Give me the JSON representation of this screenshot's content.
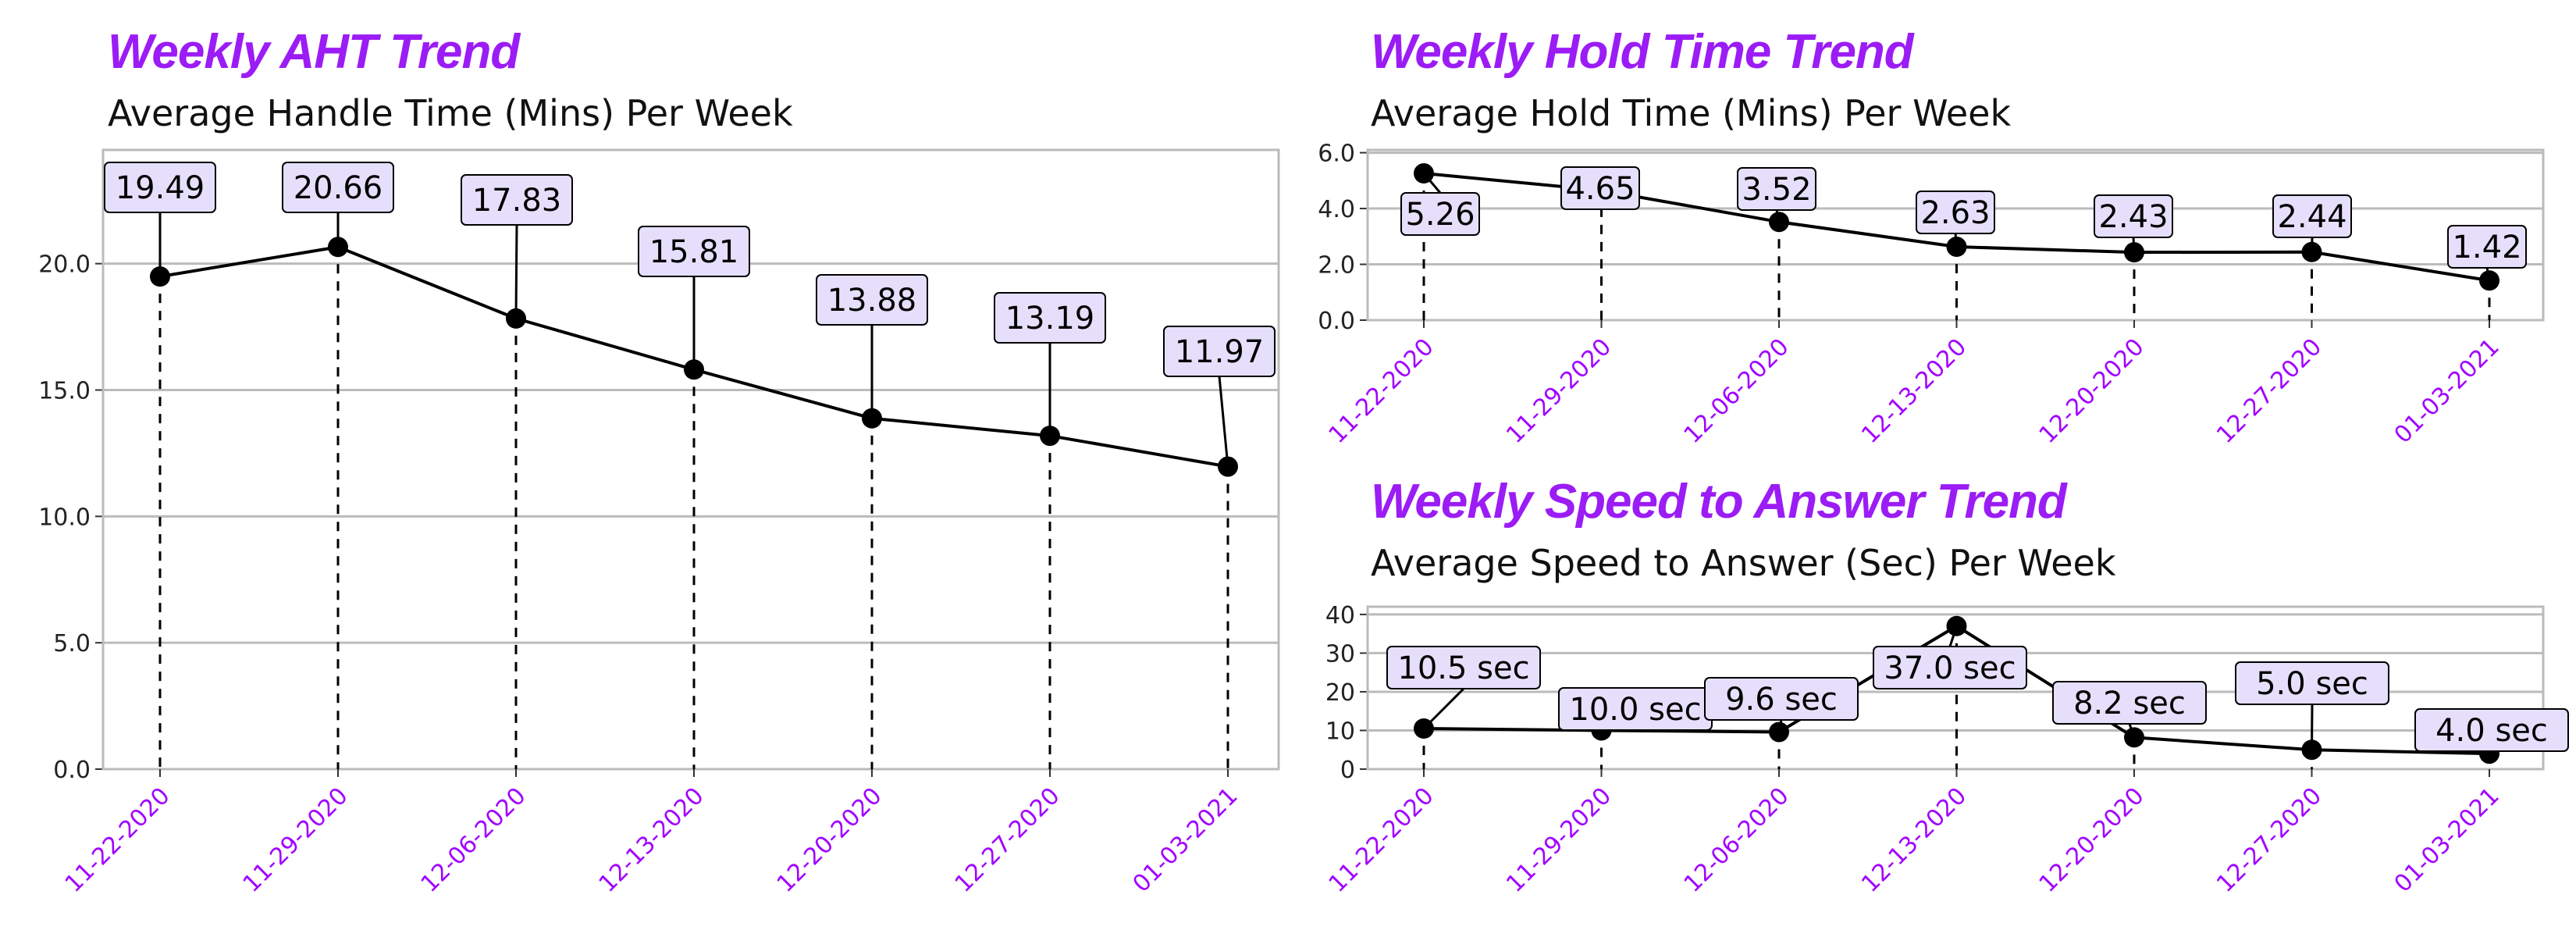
{
  "colors": {
    "title": "#9B1CF5",
    "tick_x": "#A100FF",
    "label_fill": "#E6DFFB",
    "grid": "#BBBBBB",
    "line": "#000000"
  },
  "chart_data": [
    {
      "type": "line",
      "title": "Weekly AHT Trend",
      "subtitle": "Average Handle Time (Mins) Per Week",
      "categories": [
        "11-22-2020",
        "11-29-2020",
        "12-06-2020",
        "12-13-2020",
        "12-20-2020",
        "12-27-2020",
        "01-03-2021"
      ],
      "values": [
        19.49,
        20.66,
        17.83,
        15.81,
        13.88,
        13.19,
        11.97
      ],
      "data_labels": [
        "19.49",
        "20.66",
        "17.83",
        "15.81",
        "13.88",
        "13.19",
        "11.97"
      ],
      "yticks": [
        "0.0",
        "5.0",
        "10.0",
        "15.0",
        "20.0"
      ],
      "ylim": [
        0,
        24.5
      ],
      "grid": true,
      "xlabel": "",
      "ylabel": ""
    },
    {
      "type": "line",
      "title": "Weekly Hold Time Trend",
      "subtitle": "Average Hold Time (Mins) Per Week",
      "categories": [
        "11-22-2020",
        "11-29-2020",
        "12-06-2020",
        "12-13-2020",
        "12-20-2020",
        "12-27-2020",
        "01-03-2021"
      ],
      "values": [
        5.26,
        4.65,
        3.52,
        2.63,
        2.43,
        2.44,
        1.42
      ],
      "data_labels": [
        "5.26",
        "4.65",
        "3.52",
        "2.63",
        "2.43",
        "2.44",
        "1.42"
      ],
      "yticks": [
        "0.0",
        "2.0",
        "4.0",
        "6.0"
      ],
      "ylim": [
        0,
        6.1
      ],
      "grid": true,
      "xlabel": "",
      "ylabel": ""
    },
    {
      "type": "line",
      "title": "Weekly Speed to Answer Trend",
      "subtitle": "Average Speed to Answer (Sec) Per Week",
      "categories": [
        "11-22-2020",
        "11-29-2020",
        "12-06-2020",
        "12-13-2020",
        "12-20-2020",
        "12-27-2020",
        "01-03-2021"
      ],
      "values": [
        10.5,
        10.0,
        9.6,
        37.0,
        8.2,
        5.0,
        4.0
      ],
      "data_labels": [
        "10.5 sec",
        "10.0 sec",
        "9.6 sec",
        "37.0 sec",
        "8.2 sec",
        "5.0 sec",
        "4.0 sec"
      ],
      "yticks": [
        "0",
        "10",
        "20",
        "30",
        "40"
      ],
      "ylim": [
        0,
        42
      ],
      "grid": true,
      "xlabel": "",
      "ylabel": ""
    }
  ]
}
